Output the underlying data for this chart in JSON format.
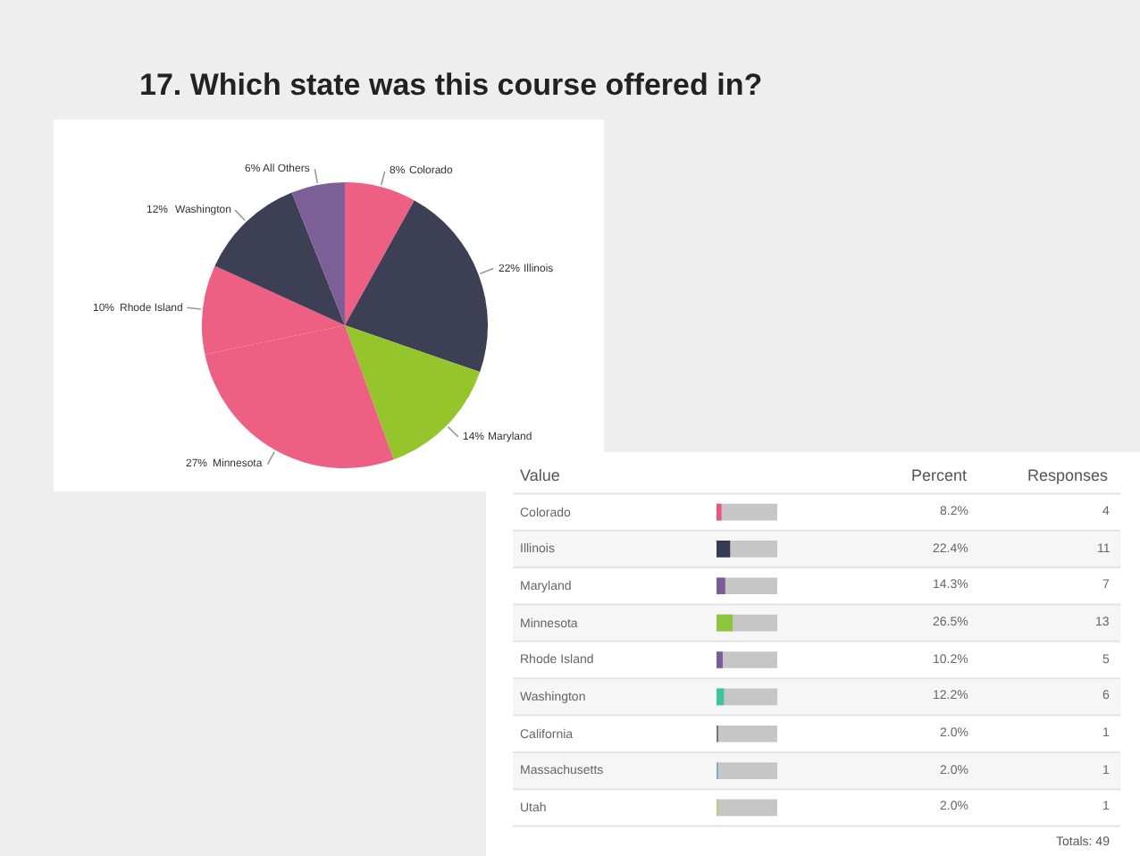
{
  "chart_data": [
    {
      "type": "pie",
      "title": "17. Which state was this course offered in?",
      "categories": [
        "Colorado",
        "Illinois",
        "Maryland",
        "Minnesota",
        "Rhode Island",
        "Washington",
        "All Others"
      ],
      "values": [
        8,
        22,
        14,
        27,
        10,
        12,
        6
      ],
      "value_labels": [
        "8%",
        "22%",
        "14%",
        "27%",
        "10%",
        "12%",
        "6%"
      ],
      "colors": [
        "#ee5f84",
        "#3d3f55",
        "#94c62b",
        "#ee5f84",
        "#ee5f84",
        "#3d3f55",
        "#7d5f97"
      ]
    },
    {
      "type": "bar",
      "orientation": "horizontal",
      "ylabel": "Value",
      "categories": [
        "Colorado",
        "Illinois",
        "Maryland",
        "Minnesota",
        "Rhode Island",
        "Washington",
        "California",
        "Massachusetts",
        "Utah"
      ],
      "xlim": [
        0,
        100
      ],
      "tick_labels": "y",
      "series": [
        {
          "name": "Percent",
          "values": [
            8.2,
            22.4,
            14.3,
            26.5,
            10.2,
            12.2,
            2.0,
            2.0,
            2.0
          ],
          "value_labels": [
            "8.2%",
            "22.4%",
            "14.3%",
            "26.5%",
            "10.2%",
            "12.2%",
            "2.0%",
            "2.0%",
            "2.0%"
          ],
          "colors": [
            "#e8577c",
            "#363a52",
            "#7c5c98",
            "#8cc63f",
            "#7c5c98",
            "#3cc3a0",
            "#777777",
            "#7ab0cc",
            "#c8cc6a"
          ]
        }
      ]
    },
    {
      "type": "other",
      "title": "Responses",
      "values": [
        4,
        11,
        7,
        13,
        5,
        6,
        1,
        1,
        1
      ],
      "data_labels": true,
      "annotations": [
        "Totals: 49"
      ]
    }
  ]
}
